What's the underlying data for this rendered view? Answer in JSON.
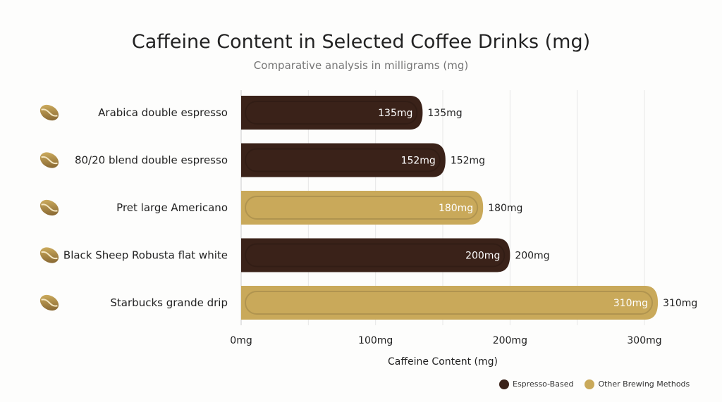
{
  "chart_data": {
    "type": "bar",
    "orientation": "horizontal",
    "title": "Caffeine Content in Selected Coffee Drinks (mg)",
    "subtitle": "Comparative analysis in milligrams (mg)",
    "xlabel": "Caffeine Content (mg)",
    "ylabel": "",
    "xlim": [
      0,
      300
    ],
    "ticks": [
      {
        "v": 0,
        "label": "0mg"
      },
      {
        "v": 100,
        "label": "100mg"
      },
      {
        "v": 200,
        "label": "200mg"
      },
      {
        "v": 300,
        "label": "300mg"
      }
    ],
    "grid": true,
    "categories": [
      "Arabica double espresso",
      "80/20 blend double espresso",
      "Pret large Americano",
      "Black Sheep Robusta flat white",
      "Starbucks grande drip"
    ],
    "values": [
      135,
      152,
      180,
      200,
      310
    ],
    "value_labels": [
      "135mg",
      "152mg",
      "180mg",
      "200mg",
      "310mg"
    ],
    "groups": [
      "Espresso-Based",
      "Espresso-Based",
      "Other Brewing Methods",
      "Espresso-Based",
      "Other Brewing Methods"
    ],
    "legend": [
      {
        "name": "Espresso-Based",
        "color": "#3a2219"
      },
      {
        "name": "Other Brewing Methods",
        "color": "#c9a95a"
      }
    ],
    "legend_position": "bottom-right",
    "icon": "coffee-bean-icon"
  }
}
